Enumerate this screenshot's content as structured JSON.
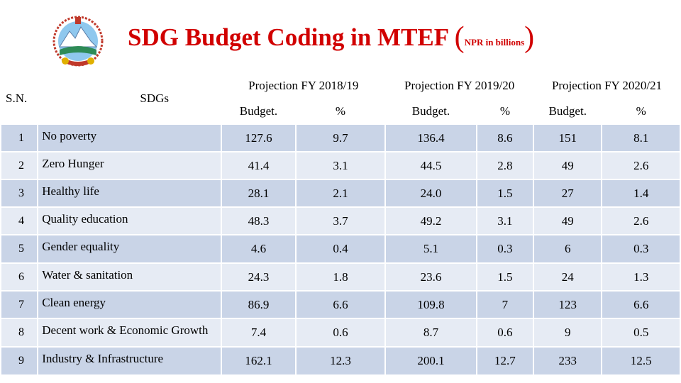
{
  "title": {
    "main": "SDG Budget Coding in MTEF",
    "open_paren": "(",
    "units": "NPR in billions",
    "close_paren": ")"
  },
  "emblem": {
    "icon": "nepal-emblem-icon"
  },
  "table": {
    "sn_header": "S.N.",
    "sdg_header": "SDGs",
    "projections": [
      "Projection FY 2018/19",
      "Projection FY 2019/20",
      "Projection FY 2020/21"
    ],
    "sub_headers": [
      "Budget.",
      "%",
      "Budget.",
      "%",
      "Budget.",
      "%"
    ],
    "rows": [
      {
        "sn": "1",
        "sdg": "No poverty",
        "values": [
          "127.6",
          "9.7",
          "136.4",
          "8.6",
          "151",
          "8.1"
        ]
      },
      {
        "sn": "2",
        "sdg": "Zero Hunger",
        "values": [
          "41.4",
          "3.1",
          "44.5",
          "2.8",
          "49",
          "2.6"
        ]
      },
      {
        "sn": "3",
        "sdg": "Healthy life",
        "values": [
          "28.1",
          "2.1",
          "24.0",
          "1.5",
          "27",
          "1.4"
        ]
      },
      {
        "sn": "4",
        "sdg": "Quality education",
        "values": [
          "48.3",
          "3.7",
          "49.2",
          "3.1",
          "49",
          "2.6"
        ]
      },
      {
        "sn": "5",
        "sdg": "Gender equality",
        "values": [
          "4.6",
          "0.4",
          "5.1",
          "0.3",
          "6",
          "0.3"
        ]
      },
      {
        "sn": "6",
        "sdg": "Water & sanitation",
        "values": [
          "24.3",
          "1.8",
          "23.6",
          "1.5",
          "24",
          "1.3"
        ]
      },
      {
        "sn": "7",
        "sdg": "Clean energy",
        "values": [
          "86.9",
          "6.6",
          "109.8",
          "7",
          "123",
          "6.6"
        ]
      },
      {
        "sn": "8",
        "sdg": "Decent work & Economic Growth",
        "values": [
          "7.4",
          "0.6",
          "8.7",
          "0.6",
          "9",
          "0.5"
        ]
      },
      {
        "sn": "9",
        "sdg": "Industry & Infrastructure",
        "values": [
          "162.1",
          "12.3",
          "200.1",
          "12.7",
          "233",
          "12.5"
        ]
      }
    ]
  },
  "colors": {
    "title": "#d10000",
    "row_dark": "#c9d4e7",
    "row_light": "#e6ebf4"
  }
}
